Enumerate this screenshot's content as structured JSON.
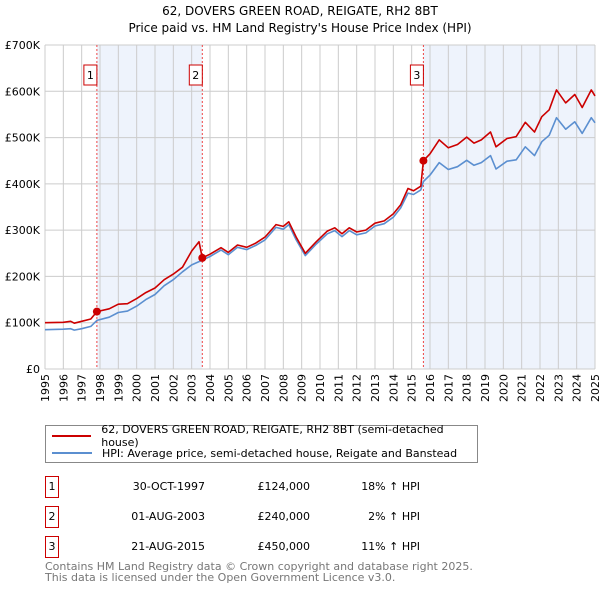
{
  "chart_data": {
    "type": "line",
    "title": "62, DOVERS GREEN ROAD, REIGATE, RH2 8BT",
    "subtitle": "Price paid vs. HM Land Registry's House Price Index (HPI)",
    "xlim": [
      1995,
      2025
    ],
    "ylim": [
      0,
      700000
    ],
    "x_ticks": [
      "1995",
      "1996",
      "1997",
      "1998",
      "1999",
      "2000",
      "2001",
      "2002",
      "2003",
      "2004",
      "2005",
      "2006",
      "2007",
      "2008",
      "2009",
      "2010",
      "2011",
      "2012",
      "2013",
      "2014",
      "2015",
      "2016",
      "2017",
      "2018",
      "2019",
      "2020",
      "2021",
      "2022",
      "2023",
      "2024",
      "2025"
    ],
    "y_ticks": [
      {
        "v": 0,
        "label": "£0"
      },
      {
        "v": 100000,
        "label": "£100K"
      },
      {
        "v": 200000,
        "label": "£200K"
      },
      {
        "v": 300000,
        "label": "£300K"
      },
      {
        "v": 400000,
        "label": "£400K"
      },
      {
        "v": 500000,
        "label": "£500K"
      },
      {
        "v": 600000,
        "label": "£600K"
      },
      {
        "v": 700000,
        "label": "£700K"
      }
    ],
    "grid": true,
    "x": [
      1995.0,
      1996.0,
      1996.4,
      1996.6,
      1997.0,
      1997.5,
      1997.83,
      1998.5,
      1999.0,
      1999.5,
      2000.0,
      2000.5,
      2001.0,
      2001.5,
      2002.0,
      2002.5,
      2003.0,
      2003.4,
      2003.58,
      2004.0,
      2004.6,
      2005.0,
      2005.5,
      2006.0,
      2006.5,
      2007.0,
      2007.6,
      2008.0,
      2008.3,
      2008.7,
      2009.2,
      2009.8,
      2010.4,
      2010.8,
      2011.2,
      2011.6,
      2012.0,
      2012.5,
      2013.0,
      2013.5,
      2014.0,
      2014.4,
      2014.8,
      2015.1,
      2015.5,
      2015.64,
      2016.0,
      2016.5,
      2017.0,
      2017.5,
      2018.0,
      2018.4,
      2018.8,
      2019.3,
      2019.6,
      2020.2,
      2020.7,
      2021.2,
      2021.7,
      2022.1,
      2022.5,
      2022.9,
      2023.4,
      2023.9,
      2024.3,
      2024.8,
      2025.0
    ],
    "series": [
      {
        "name": "62, DOVERS GREEN ROAD, REIGATE, RH2 8BT (semi-detached house)",
        "color": "#cc0000",
        "values": [
          100000,
          101000,
          103000,
          99000,
          103000,
          108000,
          124000,
          130000,
          140000,
          141000,
          152000,
          165000,
          175000,
          193000,
          205000,
          220000,
          255000,
          275000,
          240000,
          248000,
          262000,
          252000,
          268000,
          263000,
          272000,
          285000,
          312000,
          308000,
          318000,
          285000,
          250000,
          275000,
          298000,
          305000,
          292000,
          305000,
          296000,
          300000,
          315000,
          320000,
          335000,
          355000,
          390000,
          385000,
          395000,
          450000,
          465000,
          495000,
          478000,
          485000,
          501000,
          488000,
          495000,
          512000,
          480000,
          498000,
          502000,
          533000,
          512000,
          545000,
          560000,
          603000,
          575000,
          593000,
          565000,
          603000,
          590000
        ]
      },
      {
        "name": "HPI: Average price, semi-detached house, Reigate and Banstead",
        "color": "#5b8fd0",
        "values": [
          85000,
          86000,
          87000,
          84000,
          87000,
          92000,
          105000,
          112000,
          122000,
          125000,
          136000,
          150000,
          161000,
          180000,
          193000,
          210000,
          225000,
          232000,
          235000,
          243000,
          257000,
          247000,
          263000,
          258000,
          267000,
          279000,
          306000,
          302000,
          312000,
          279000,
          245000,
          270000,
          292000,
          299000,
          286000,
          299000,
          290000,
          294000,
          309000,
          314000,
          328000,
          348000,
          380000,
          377000,
          387000,
          405000,
          419000,
          446000,
          431000,
          437000,
          451000,
          440000,
          446000,
          461000,
          432000,
          449000,
          452000,
          480000,
          461000,
          491000,
          505000,
          543000,
          518000,
          534000,
          509000,
          543000,
          532000
        ]
      }
    ],
    "sales": [
      {
        "num": "1",
        "x": 1997.83,
        "price": 124000,
        "date": "30-OCT-1997",
        "price_label": "£124,000",
        "hpi": "18% ↑ HPI"
      },
      {
        "num": "2",
        "x": 2003.58,
        "price": 240000,
        "date": "01-AUG-2003",
        "price_label": "£240,000",
        "hpi": " 2% ↑ HPI"
      },
      {
        "num": "3",
        "x": 2015.64,
        "price": 450000,
        "date": "21-AUG-2015",
        "price_label": "£450,000",
        "hpi": "11% ↑ HPI"
      }
    ],
    "shaded_ranges": [
      [
        1997.83,
        2003.58
      ],
      [
        2015.64,
        2025
      ]
    ],
    "legend_placement": "below"
  },
  "footer": {
    "line1": "Contains HM Land Registry data © Crown copyright and database right 2025.",
    "line2": "This data is licensed under the Open Government Licence v3.0."
  }
}
